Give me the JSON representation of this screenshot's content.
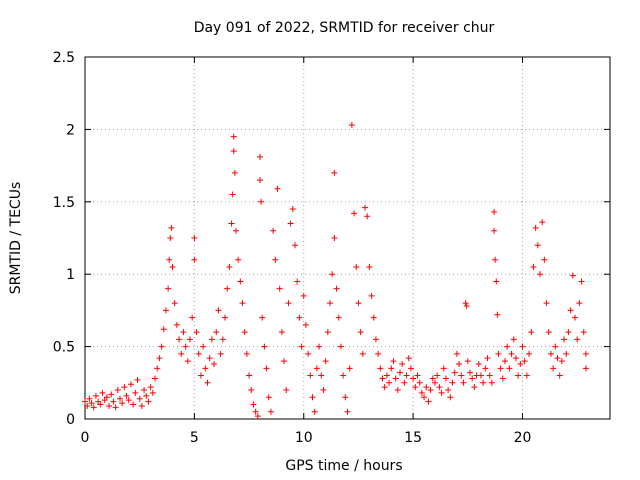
{
  "chart_data": {
    "type": "scatter",
    "title": "Day 091 of 2022, SRMTID for receiver chur",
    "xlabel": "GPS time / hours",
    "ylabel": "SRMTID / TECUs",
    "xlim": [
      0,
      24
    ],
    "ylim": [
      0,
      2.5
    ],
    "xticks": [
      0,
      5,
      10,
      15,
      20
    ],
    "xtick_labels": [
      "0",
      "5",
      "10",
      "15",
      "20"
    ],
    "yticks": [
      0,
      0.5,
      1,
      1.5,
      2,
      2.5
    ],
    "ytick_labels": [
      "0",
      "0.5",
      "1",
      "1.5",
      "2",
      "2.5"
    ],
    "grid": true,
    "marker": "+",
    "color": "#ff0000",
    "series": [
      {
        "name": "SRMTID",
        "points": [
          [
            0.0,
            0.12
          ],
          [
            0.1,
            0.09
          ],
          [
            0.2,
            0.14
          ],
          [
            0.3,
            0.11
          ],
          [
            0.4,
            0.08
          ],
          [
            0.5,
            0.16
          ],
          [
            0.6,
            0.12
          ],
          [
            0.7,
            0.1
          ],
          [
            0.8,
            0.18
          ],
          [
            0.9,
            0.13
          ],
          [
            1.0,
            0.15
          ],
          [
            1.1,
            0.09
          ],
          [
            1.2,
            0.17
          ],
          [
            1.3,
            0.12
          ],
          [
            1.4,
            0.08
          ],
          [
            1.5,
            0.2
          ],
          [
            1.6,
            0.14
          ],
          [
            1.7,
            0.11
          ],
          [
            1.8,
            0.22
          ],
          [
            1.9,
            0.16
          ],
          [
            2.0,
            0.13
          ],
          [
            2.1,
            0.24
          ],
          [
            2.2,
            0.1
          ],
          [
            2.3,
            0.18
          ],
          [
            2.4,
            0.27
          ],
          [
            2.5,
            0.14
          ],
          [
            2.6,
            0.09
          ],
          [
            2.7,
            0.2
          ],
          [
            2.8,
            0.16
          ],
          [
            2.9,
            0.12
          ],
          [
            3.0,
            0.22
          ],
          [
            3.1,
            0.18
          ],
          [
            3.2,
            0.28
          ],
          [
            3.3,
            0.35
          ],
          [
            3.4,
            0.42
          ],
          [
            3.5,
            0.5
          ],
          [
            3.6,
            0.62
          ],
          [
            3.7,
            0.75
          ],
          [
            3.8,
            0.9
          ],
          [
            3.85,
            1.1
          ],
          [
            3.9,
            1.25
          ],
          [
            3.95,
            1.32
          ],
          [
            4.0,
            1.05
          ],
          [
            4.1,
            0.8
          ],
          [
            4.2,
            0.65
          ],
          [
            4.3,
            0.55
          ],
          [
            4.4,
            0.45
          ],
          [
            4.5,
            0.6
          ],
          [
            4.6,
            0.5
          ],
          [
            4.7,
            0.4
          ],
          [
            4.8,
            0.55
          ],
          [
            4.9,
            0.7
          ],
          [
            5.0,
            1.1
          ],
          [
            5.0,
            1.25
          ],
          [
            5.1,
            0.6
          ],
          [
            5.2,
            0.45
          ],
          [
            5.3,
            0.3
          ],
          [
            5.4,
            0.5
          ],
          [
            5.5,
            0.35
          ],
          [
            5.6,
            0.25
          ],
          [
            5.7,
            0.42
          ],
          [
            5.8,
            0.55
          ],
          [
            5.9,
            0.38
          ],
          [
            6.0,
            0.6
          ],
          [
            6.1,
            0.75
          ],
          [
            6.2,
            0.45
          ],
          [
            6.3,
            0.55
          ],
          [
            6.4,
            0.7
          ],
          [
            6.5,
            0.9
          ],
          [
            6.6,
            1.05
          ],
          [
            6.7,
            1.35
          ],
          [
            6.75,
            1.55
          ],
          [
            6.8,
            1.95
          ],
          [
            6.8,
            1.85
          ],
          [
            6.85,
            1.7
          ],
          [
            6.9,
            1.3
          ],
          [
            7.0,
            1.1
          ],
          [
            7.1,
            0.95
          ],
          [
            7.2,
            0.8
          ],
          [
            7.3,
            0.6
          ],
          [
            7.4,
            0.45
          ],
          [
            7.5,
            0.3
          ],
          [
            7.6,
            0.2
          ],
          [
            7.7,
            0.1
          ],
          [
            7.8,
            0.05
          ],
          [
            7.9,
            0.02
          ],
          [
            8.0,
            1.81
          ],
          [
            8.0,
            1.65
          ],
          [
            8.05,
            1.5
          ],
          [
            8.1,
            0.7
          ],
          [
            8.2,
            0.5
          ],
          [
            8.3,
            0.35
          ],
          [
            8.4,
            0.15
          ],
          [
            8.5,
            0.05
          ],
          [
            8.6,
            1.3
          ],
          [
            8.7,
            1.1
          ],
          [
            8.8,
            1.59
          ],
          [
            8.9,
            0.9
          ],
          [
            9.0,
            0.6
          ],
          [
            9.1,
            0.4
          ],
          [
            9.2,
            0.2
          ],
          [
            9.3,
            0.8
          ],
          [
            9.4,
            1.35
          ],
          [
            9.5,
            1.45
          ],
          [
            9.6,
            1.2
          ],
          [
            9.7,
            0.95
          ],
          [
            9.8,
            0.7
          ],
          [
            9.9,
            0.5
          ],
          [
            10.0,
            0.85
          ],
          [
            10.1,
            0.65
          ],
          [
            10.2,
            0.45
          ],
          [
            10.3,
            0.3
          ],
          [
            10.4,
            0.15
          ],
          [
            10.5,
            0.05
          ],
          [
            10.6,
            0.35
          ],
          [
            10.7,
            0.5
          ],
          [
            10.8,
            0.3
          ],
          [
            10.9,
            0.2
          ],
          [
            11.0,
            0.4
          ],
          [
            11.1,
            0.6
          ],
          [
            11.2,
            0.8
          ],
          [
            11.3,
            1.0
          ],
          [
            11.4,
            1.7
          ],
          [
            11.4,
            1.25
          ],
          [
            11.5,
            0.9
          ],
          [
            11.6,
            0.7
          ],
          [
            11.7,
            0.5
          ],
          [
            11.8,
            0.3
          ],
          [
            11.9,
            0.15
          ],
          [
            12.0,
            0.05
          ],
          [
            12.1,
            0.35
          ],
          [
            12.2,
            2.03
          ],
          [
            12.3,
            1.42
          ],
          [
            12.4,
            1.05
          ],
          [
            12.5,
            0.8
          ],
          [
            12.6,
            0.6
          ],
          [
            12.7,
            0.45
          ],
          [
            12.8,
            1.46
          ],
          [
            12.9,
            1.4
          ],
          [
            13.0,
            1.05
          ],
          [
            13.1,
            0.85
          ],
          [
            13.2,
            0.7
          ],
          [
            13.3,
            0.55
          ],
          [
            13.4,
            0.45
          ],
          [
            13.5,
            0.35
          ],
          [
            13.6,
            0.28
          ],
          [
            13.7,
            0.22
          ],
          [
            13.8,
            0.3
          ],
          [
            13.9,
            0.25
          ],
          [
            14.0,
            0.35
          ],
          [
            14.1,
            0.4
          ],
          [
            14.2,
            0.28
          ],
          [
            14.3,
            0.2
          ],
          [
            14.4,
            0.32
          ],
          [
            14.5,
            0.38
          ],
          [
            14.6,
            0.25
          ],
          [
            14.7,
            0.3
          ],
          [
            14.8,
            0.42
          ],
          [
            14.9,
            0.35
          ],
          [
            15.0,
            0.28
          ],
          [
            15.1,
            0.22
          ],
          [
            15.2,
            0.3
          ],
          [
            15.3,
            0.25
          ],
          [
            15.4,
            0.18
          ],
          [
            15.5,
            0.15
          ],
          [
            15.6,
            0.22
          ],
          [
            15.7,
            0.12
          ],
          [
            15.8,
            0.2
          ],
          [
            15.9,
            0.28
          ],
          [
            16.0,
            0.25
          ],
          [
            16.1,
            0.3
          ],
          [
            16.2,
            0.22
          ],
          [
            16.3,
            0.18
          ],
          [
            16.4,
            0.35
          ],
          [
            16.5,
            0.28
          ],
          [
            16.6,
            0.2
          ],
          [
            16.7,
            0.15
          ],
          [
            16.8,
            0.25
          ],
          [
            16.9,
            0.32
          ],
          [
            17.0,
            0.45
          ],
          [
            17.1,
            0.38
          ],
          [
            17.2,
            0.3
          ],
          [
            17.3,
            0.25
          ],
          [
            17.4,
            0.8
          ],
          [
            17.45,
            0.78
          ],
          [
            17.5,
            0.4
          ],
          [
            17.6,
            0.32
          ],
          [
            17.7,
            0.28
          ],
          [
            17.8,
            0.22
          ],
          [
            17.9,
            0.3
          ],
          [
            18.0,
            0.38
          ],
          [
            18.1,
            0.3
          ],
          [
            18.2,
            0.25
          ],
          [
            18.3,
            0.35
          ],
          [
            18.4,
            0.42
          ],
          [
            18.5,
            0.3
          ],
          [
            18.6,
            0.25
          ],
          [
            18.7,
            1.43
          ],
          [
            18.7,
            1.3
          ],
          [
            18.75,
            1.1
          ],
          [
            18.8,
            0.95
          ],
          [
            18.85,
            0.72
          ],
          [
            18.9,
            0.45
          ],
          [
            19.0,
            0.35
          ],
          [
            19.1,
            0.28
          ],
          [
            19.2,
            0.4
          ],
          [
            19.3,
            0.5
          ],
          [
            19.4,
            0.35
          ],
          [
            19.5,
            0.45
          ],
          [
            19.6,
            0.55
          ],
          [
            19.7,
            0.42
          ],
          [
            19.8,
            0.3
          ],
          [
            19.9,
            0.38
          ],
          [
            20.0,
            0.5
          ],
          [
            20.1,
            0.4
          ],
          [
            20.2,
            0.3
          ],
          [
            20.3,
            0.45
          ],
          [
            20.4,
            0.6
          ],
          [
            20.5,
            1.05
          ],
          [
            20.6,
            1.32
          ],
          [
            20.7,
            1.2
          ],
          [
            20.8,
            1.0
          ],
          [
            20.9,
            1.36
          ],
          [
            21.0,
            1.1
          ],
          [
            21.1,
            0.8
          ],
          [
            21.2,
            0.6
          ],
          [
            21.3,
            0.45
          ],
          [
            21.4,
            0.35
          ],
          [
            21.5,
            0.5
          ],
          [
            21.6,
            0.42
          ],
          [
            21.7,
            0.3
          ],
          [
            21.8,
            0.4
          ],
          [
            21.9,
            0.55
          ],
          [
            22.0,
            0.45
          ],
          [
            22.1,
            0.6
          ],
          [
            22.2,
            0.75
          ],
          [
            22.3,
            0.99
          ],
          [
            22.4,
            0.7
          ],
          [
            22.5,
            0.55
          ],
          [
            22.6,
            0.8
          ],
          [
            22.7,
            0.95
          ],
          [
            22.8,
            0.6
          ],
          [
            22.9,
            0.45
          ],
          [
            22.9,
            0.35
          ]
        ]
      }
    ]
  }
}
